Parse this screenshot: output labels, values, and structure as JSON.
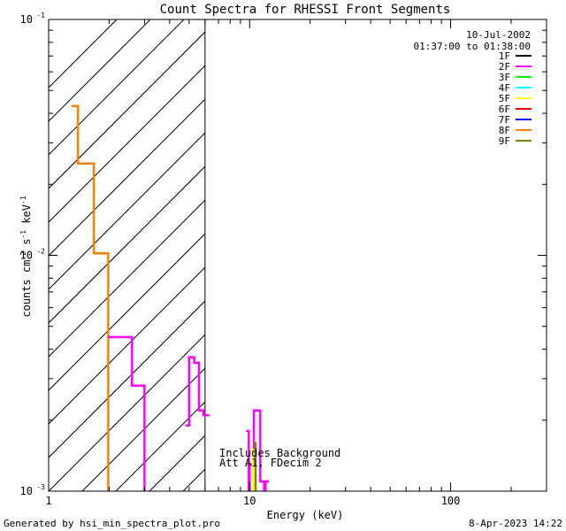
{
  "chart_data": {
    "type": "line",
    "title": "Count Spectra for RHESSI Front Segments",
    "xlabel": "Energy (keV)",
    "ylabel": "counts cm",
    "ylabel_sup1": "-2",
    "ylabel_mid": " s",
    "ylabel_sup2": "-1",
    "ylabel_tail": " keV",
    "ylabel_sup3": "-1",
    "x_scale": "log",
    "y_scale": "log",
    "xlim": [
      1,
      300
    ],
    "ylim": [
      0.001,
      0.1
    ],
    "x_tick_labels": [
      {
        "value": 1,
        "label": "1"
      },
      {
        "value": 10,
        "label": "10"
      },
      {
        "value": 100,
        "label": "100"
      }
    ],
    "y_tick_labels": [
      {
        "value": 0.1,
        "label": "10",
        "exp": "-1"
      },
      {
        "value": 0.01,
        "label": "10",
        "exp": "-2"
      },
      {
        "value": 0.001,
        "label": "10",
        "exp": "-3"
      }
    ],
    "date": "10-Jul-2002",
    "time_range": "01:37:00 to 01:38:00",
    "hatched_region_keV": [
      1,
      6
    ],
    "annotations": [
      "Includes Background",
      "Att A1, FDecim 2"
    ],
    "legend": [
      {
        "name": "1F",
        "color": "#000000"
      },
      {
        "name": "2F",
        "color": "#ff00ff"
      },
      {
        "name": "3F",
        "color": "#00ff00"
      },
      {
        "name": "4F",
        "color": "#00ffff"
      },
      {
        "name": "5F",
        "color": "#ffff00"
      },
      {
        "name": "6F",
        "color": "#ff0000"
      },
      {
        "name": "7F",
        "color": "#0000ff"
      },
      {
        "name": "8F",
        "color": "#ff7f00"
      },
      {
        "name": "9F",
        "color": "#808000"
      }
    ],
    "series": [
      {
        "name": "8F",
        "color": "#ff7f00",
        "type": "step",
        "edges": [
          1.3,
          1.4,
          1.68,
          1.98,
          2.3
        ],
        "values": [
          0.043,
          0.0245,
          0.0102,
          0.0008
        ]
      },
      {
        "name": "2F (segment A)",
        "color": "#ff00ff",
        "type": "step",
        "edges": [
          1.98,
          2.6,
          3.0,
          3.2
        ],
        "values": [
          0.0045,
          0.0028,
          0.0008
        ]
      },
      {
        "name": "2F (segment B)",
        "color": "#ff00ff",
        "type": "step",
        "edges": [
          4.8,
          5.0,
          5.3,
          5.6,
          5.9,
          6.3
        ],
        "values": [
          0.0019,
          0.0037,
          0.0035,
          0.0022,
          0.0021
        ]
      },
      {
        "name": "2F (segment C)",
        "color": "#ff00ff",
        "type": "step",
        "edges": [
          9.6,
          9.9,
          10.0,
          10.5,
          11.3,
          11.8,
          12.0,
          12.5
        ],
        "values": [
          0.0018,
          0.0008,
          0.0013,
          0.0022,
          0.0011,
          0.0009,
          0.0011
        ]
      },
      {
        "name": "5F",
        "color": "#ffff00",
        "type": "step",
        "edges": [
          10.2,
          10.4,
          10.6
        ],
        "values": [
          0.0015,
          0.0008
        ]
      },
      {
        "name": "9F",
        "color": "#808000",
        "type": "step",
        "edges": [
          10.5,
          10.7,
          10.9
        ],
        "values": [
          0.0016,
          0.0008
        ]
      }
    ]
  },
  "footer": {
    "generated_by": "Generated by hsi_min_spectra_plot.pro",
    "timestamp": "8-Apr-2023 14:22"
  }
}
